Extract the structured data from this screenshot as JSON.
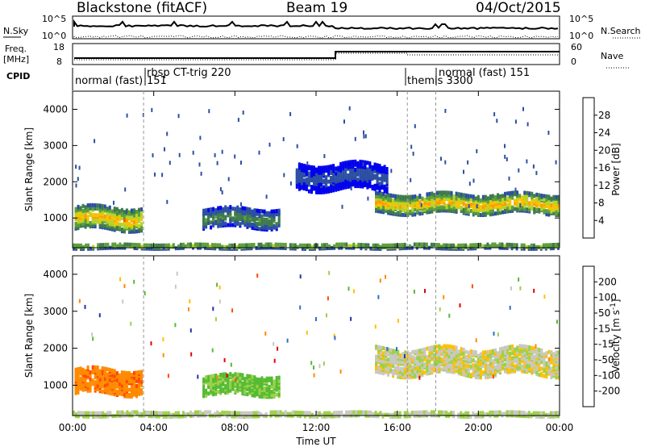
{
  "header": {
    "site": "Blackstone (fitACF)",
    "beam": "Beam 19",
    "date": "04/Oct/2015"
  },
  "panels": {
    "nsky_label": "N.Sky",
    "nsearch_label": "N.Search",
    "nsky_ticks": [
      "10^5",
      "10^0"
    ],
    "nsearch_ticks": [
      "10^5",
      "10^0"
    ],
    "freq_label_1": "Freq.",
    "freq_label_2": "[MHz]",
    "freq_ticks": [
      "18",
      "8"
    ],
    "nave_label": "Nave",
    "nave_ticks": [
      "60",
      "0"
    ],
    "cpid_label": "CPID"
  },
  "cpid_segments": [
    {
      "label": "normal (fast)"
    },
    {
      "label": "rbsp CT-trig 220"
    },
    {
      "label": "151"
    },
    {
      "label": "themis 3300"
    },
    {
      "label": "normal (fast) 151"
    }
  ],
  "colors": {
    "power": [
      "#0000ee",
      "#2c4fa3",
      "#3f7a4d",
      "#5c9e3c",
      "#b5d42a",
      "#f4c400",
      "#ff9a00",
      "#ff5a00",
      "#e60000"
    ],
    "velocity": [
      "#2233aa",
      "#2b6fcf",
      "#55bb33",
      "#9cd04a",
      "#c8c8c0",
      "#ffc000",
      "#ff8a00",
      "#ff4a00",
      "#e00000"
    ],
    "ground": "#3b6e9e"
  },
  "chart_data": [
    {
      "type": "heatmap",
      "title": "",
      "xlabel": "",
      "ylabel": "Slant Range [km]",
      "xlim_hours": [
        0,
        24
      ],
      "ylim_km": [
        180,
        4500
      ],
      "x_ticks": [],
      "y_ticks": [
        "1000",
        "2000",
        "3000",
        "4000"
      ],
      "colorbar": {
        "label": "Power [dB]",
        "ticks": [
          "28",
          "24",
          "20",
          "16",
          "12",
          "8",
          "4"
        ]
      },
      "echo_regions": [
        {
          "t": [
            0.1,
            3.4
          ],
          "r_center_km": 1050,
          "r_half_km": 300,
          "peak_db": 26
        },
        {
          "t": [
            6.4,
            10.2
          ],
          "r_center_km": 1050,
          "r_half_km": 250,
          "peak_db": 12
        },
        {
          "t": [
            14.9,
            24.0
          ],
          "r_center_km": 1450,
          "r_half_km": 250,
          "peak_db": 26
        },
        {
          "t": [
            11.0,
            15.5
          ],
          "r_center_km": 2200,
          "r_half_km": 350,
          "peak_db": 6
        },
        {
          "t": [
            0.0,
            24.0
          ],
          "r_center_km": 280,
          "r_half_km": 60,
          "peak_db": 20
        }
      ]
    },
    {
      "type": "heatmap",
      "title": "",
      "xlabel": "Time UT",
      "ylabel": "Slant Range [km]",
      "xlim_hours": [
        0,
        24
      ],
      "ylim_km": [
        180,
        4500
      ],
      "x_ticks": [
        "00:00",
        "04:00",
        "08:00",
        "12:00",
        "16:00",
        "20:00",
        "00:00"
      ],
      "y_ticks": [
        "1000",
        "2000",
        "3000",
        "4000"
      ],
      "colorbar": {
        "label": "Velocity [m s^-1]",
        "ticks": [
          "200",
          "100",
          "50",
          "15",
          "-15",
          "-50",
          "-100",
          "-200"
        ]
      },
      "echo_regions": [
        {
          "t": [
            0.1,
            3.4
          ],
          "r_center_km": 1150,
          "r_half_km": 320,
          "velocity_ms": -80
        },
        {
          "t": [
            6.4,
            10.2
          ],
          "r_center_km": 1050,
          "r_half_km": 250,
          "velocity_ms": 60
        },
        {
          "t": [
            14.9,
            24.0
          ],
          "r_center_km": 1700,
          "r_half_km": 350,
          "velocity_ms": 0
        },
        {
          "t": [
            0.0,
            24.0
          ],
          "r_center_km": 280,
          "r_half_km": 60,
          "velocity_ms": 20
        }
      ]
    }
  ]
}
